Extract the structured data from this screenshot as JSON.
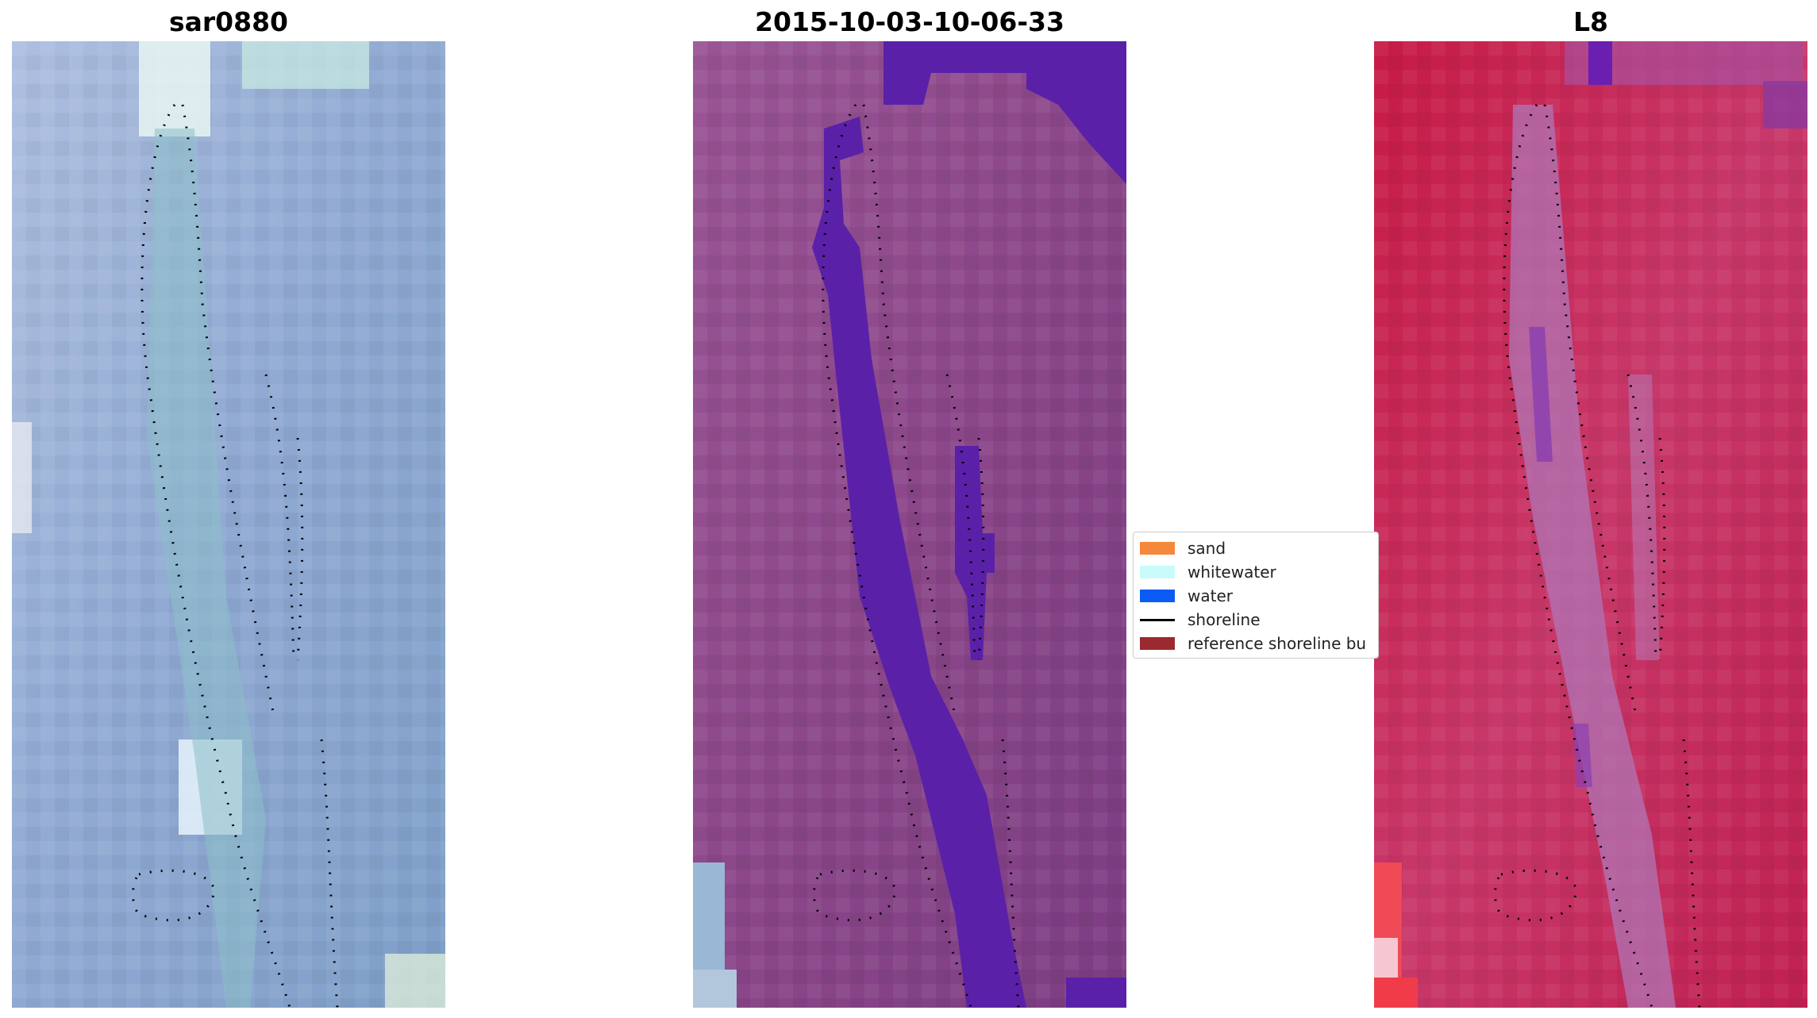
{
  "panels": [
    {
      "title": "sar0880",
      "base_color": "#8ea6cf",
      "accent_color": "#bfe6dd"
    },
    {
      "title": "2015-10-03-10-06-33",
      "base_color": "#8e4a8c",
      "accent_color": "#5a21a8"
    },
    {
      "title": "L8",
      "base_color": "#c63a62",
      "accent_color": "#b86fb8"
    }
  ],
  "legend": {
    "items": [
      {
        "label": "sand",
        "color": "#f5883a",
        "kind": "patch"
      },
      {
        "label": "whitewater",
        "color": "#c9fbfb",
        "kind": "patch"
      },
      {
        "label": "water",
        "color": "#0a5cf5",
        "kind": "patch"
      },
      {
        "label": "shoreline",
        "color": "#000000",
        "kind": "line"
      },
      {
        "label": "reference shoreline bu",
        "color": "#9b2a30",
        "kind": "patch"
      }
    ]
  }
}
